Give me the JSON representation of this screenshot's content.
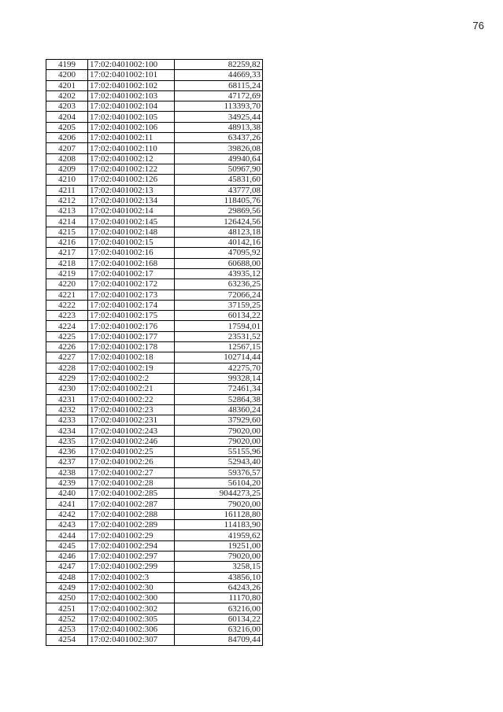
{
  "page": {
    "number": "76"
  },
  "table": {
    "columns": [
      "row-index",
      "cadastral-number",
      "value"
    ],
    "rows": [
      [
        "4199",
        "17:02:0401002:100",
        "82259,82"
      ],
      [
        "4200",
        "17:02:0401002:101",
        "44669,33"
      ],
      [
        "4201",
        "17:02:0401002:102",
        "68115,24"
      ],
      [
        "4202",
        "17:02:0401002:103",
        "47172,69"
      ],
      [
        "4203",
        "17:02:0401002:104",
        "113393,70"
      ],
      [
        "4204",
        "17:02:0401002:105",
        "34925,44"
      ],
      [
        "4205",
        "17:02:0401002:106",
        "48913,38"
      ],
      [
        "4206",
        "17:02:0401002:11",
        "63437,26"
      ],
      [
        "4207",
        "17:02:0401002:110",
        "39826,08"
      ],
      [
        "4208",
        "17:02:0401002:12",
        "49940,64"
      ],
      [
        "4209",
        "17:02:0401002:122",
        "50967,90"
      ],
      [
        "4210",
        "17:02:0401002:126",
        "45831,60"
      ],
      [
        "4211",
        "17:02:0401002:13",
        "43777,08"
      ],
      [
        "4212",
        "17:02:0401002:134",
        "118405,76"
      ],
      [
        "4213",
        "17:02:0401002:14",
        "29869,56"
      ],
      [
        "4214",
        "17:02:0401002:145",
        "126424,56"
      ],
      [
        "4215",
        "17:02:0401002:148",
        "48123,18"
      ],
      [
        "4216",
        "17:02:0401002:15",
        "40142,16"
      ],
      [
        "4217",
        "17:02:0401002:16",
        "47095,92"
      ],
      [
        "4218",
        "17:02:0401002:168",
        "60688,00"
      ],
      [
        "4219",
        "17:02:0401002:17",
        "43935,12"
      ],
      [
        "4220",
        "17:02:0401002:172",
        "63236,25"
      ],
      [
        "4221",
        "17:02:0401002:173",
        "72066,24"
      ],
      [
        "4222",
        "17:02:0401002:174",
        "37159,25"
      ],
      [
        "4223",
        "17:02:0401002:175",
        "60134,22"
      ],
      [
        "4224",
        "17:02:0401002:176",
        "17594,01"
      ],
      [
        "4225",
        "17:02:0401002:177",
        "23531,52"
      ],
      [
        "4226",
        "17:02:0401002:178",
        "12567,15"
      ],
      [
        "4227",
        "17:02:0401002:18",
        "102714,44"
      ],
      [
        "4228",
        "17:02:0401002:19",
        "42275,70"
      ],
      [
        "4229",
        "17:02:0401002:2",
        "99328,14"
      ],
      [
        "4230",
        "17:02:0401002:21",
        "72461,34"
      ],
      [
        "4231",
        "17:02:0401002:22",
        "52864,38"
      ],
      [
        "4232",
        "17:02:0401002:23",
        "48360,24"
      ],
      [
        "4233",
        "17:02:0401002:231",
        "37929,60"
      ],
      [
        "4234",
        "17:02:0401002:243",
        "79020,00"
      ],
      [
        "4235",
        "17:02:0401002:246",
        "79020,00"
      ],
      [
        "4236",
        "17:02:0401002:25",
        "55155,96"
      ],
      [
        "4237",
        "17:02:0401002:26",
        "52943,40"
      ],
      [
        "4238",
        "17:02:0401002:27",
        "59376,57"
      ],
      [
        "4239",
        "17:02:0401002:28",
        "56104,20"
      ],
      [
        "4240",
        "17:02:0401002:285",
        "9044273,25"
      ],
      [
        "4241",
        "17:02:0401002:287",
        "79020,00"
      ],
      [
        "4242",
        "17:02:0401002:288",
        "161128,80"
      ],
      [
        "4243",
        "17:02:0401002:289",
        "114183,90"
      ],
      [
        "4244",
        "17:02:0401002:29",
        "41959,62"
      ],
      [
        "4245",
        "17:02:0401002:294",
        "19251,00"
      ],
      [
        "4246",
        "17:02:0401002:297",
        "79020,00"
      ],
      [
        "4247",
        "17:02:0401002:299",
        "3258,15"
      ],
      [
        "4248",
        "17:02:0401002:3",
        "43856,10"
      ],
      [
        "4249",
        "17:02:0401002:30",
        "64243,26"
      ],
      [
        "4250",
        "17:02:0401002:300",
        "11170,80"
      ],
      [
        "4251",
        "17:02:0401002:302",
        "63216,00"
      ],
      [
        "4252",
        "17:02:0401002:305",
        "60134,22"
      ],
      [
        "4253",
        "17:02:0401002:306",
        "63216,00"
      ],
      [
        "4254",
        "17:02:0401002:307",
        "84709,44"
      ]
    ]
  }
}
